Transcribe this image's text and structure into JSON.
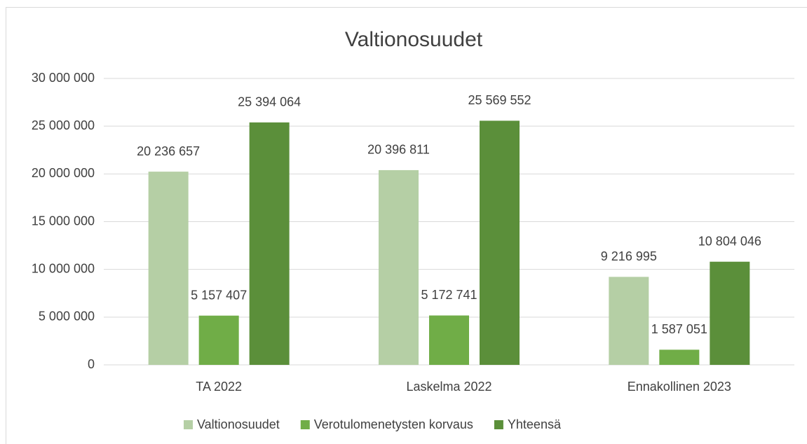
{
  "chart_data": {
    "type": "bar",
    "title": "Valtionosuudet",
    "categories": [
      "TA 2022",
      "Laskelma 2022",
      "Ennakollinen 2023"
    ],
    "series": [
      {
        "name": "Valtionosuudet",
        "color": "#b5cfa5",
        "values": [
          20236657,
          20396811,
          9216995
        ],
        "value_labels": [
          "20 236 657",
          "20 396 811",
          "9 216 995"
        ]
      },
      {
        "name": "Verotulomenetysten korvaus",
        "color": "#70ad47",
        "values": [
          5157407,
          5172741,
          1587051
        ],
        "value_labels": [
          "5 157 407",
          "5 172 741",
          "1 587 051"
        ]
      },
      {
        "name": "Yhteensä",
        "color": "#5b8f3a",
        "values": [
          25394064,
          25569552,
          10804046
        ],
        "value_labels": [
          "25 394 064",
          "25 569 552",
          "10 804 046"
        ]
      }
    ],
    "ylim": [
      0,
      30000000
    ],
    "yticks": [
      0,
      {
        "value": 5000000,
        "label": "5 000 000"
      },
      {
        "value": 10000000,
        "label": "10 000 000"
      },
      {
        "value": 15000000,
        "label": "15 000 000"
      },
      {
        "value": 20000000,
        "label": "20 000 000"
      },
      {
        "value": 25000000,
        "label": "25 000 000"
      },
      {
        "value": 30000000,
        "label": "30 000 000"
      }
    ],
    "grid": true,
    "legend": "bottom"
  }
}
